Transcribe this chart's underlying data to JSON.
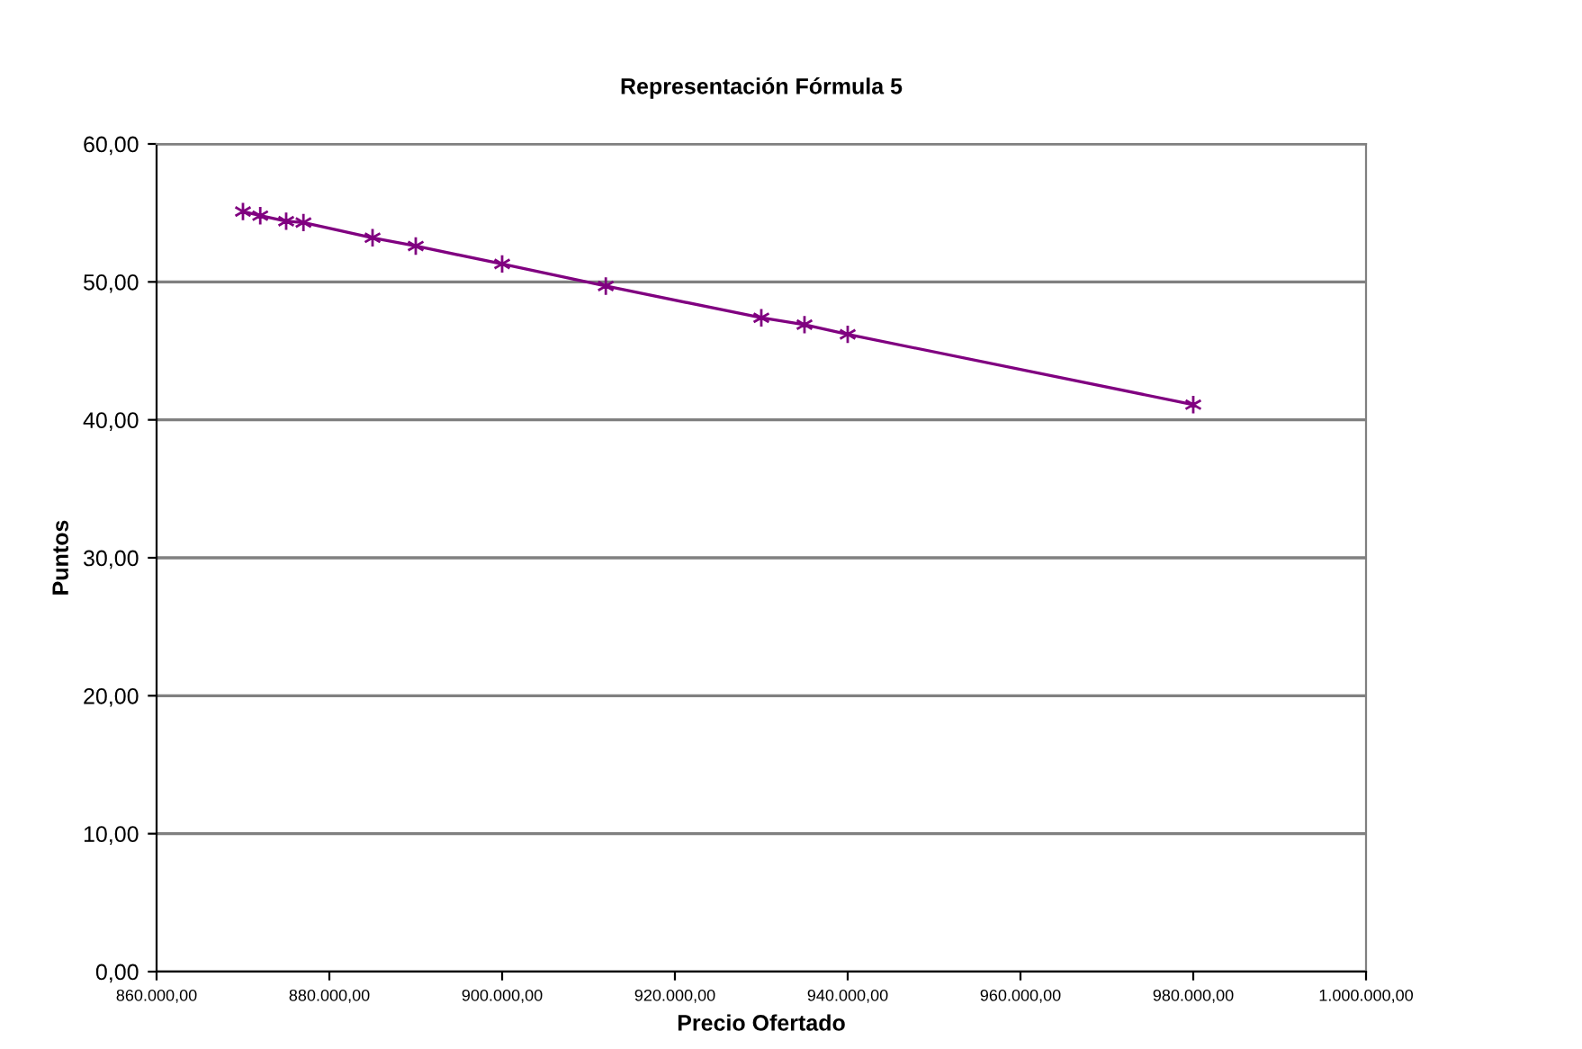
{
  "chart_data": {
    "type": "line",
    "title": "Representación Fórmula 5",
    "xlabel": "Precio Ofertado",
    "ylabel": "Puntos",
    "x": [
      870000,
      872000,
      875000,
      877000,
      885000,
      890000,
      900000,
      912000,
      930000,
      935000,
      940000,
      980000
    ],
    "series": [
      {
        "color": "#800080",
        "values": [
          55.1,
          54.8,
          54.4,
          54.3,
          53.2,
          52.6,
          51.3,
          49.7,
          47.4,
          46.9,
          46.2,
          41.1
        ]
      }
    ],
    "xlim": [
      860000,
      1000000
    ],
    "xticks": [
      {
        "value": 860000,
        "label": "860.000,00"
      },
      {
        "value": 880000,
        "label": "880.000,00"
      },
      {
        "value": 900000,
        "label": "900.000,00"
      },
      {
        "value": 920000,
        "label": "920.000,00"
      },
      {
        "value": 940000,
        "label": "940.000,00"
      },
      {
        "value": 960000,
        "label": "960.000,00"
      },
      {
        "value": 980000,
        "label": "980.000,00"
      },
      {
        "value": 1000000,
        "label": "1.000.000,00"
      }
    ],
    "ylim": [
      0,
      60
    ],
    "yticks": [
      {
        "value": 0,
        "label": "0,00"
      },
      {
        "value": 10,
        "label": "10,00"
      },
      {
        "value": 20,
        "label": "20,00"
      },
      {
        "value": 30,
        "label": "30,00"
      },
      {
        "value": 40,
        "label": "40,00"
      },
      {
        "value": 50,
        "label": "50,00"
      },
      {
        "value": 60,
        "label": "60,00"
      }
    ],
    "grid": "y",
    "legend": false,
    "marker": "cross",
    "line_style": "solid"
  }
}
